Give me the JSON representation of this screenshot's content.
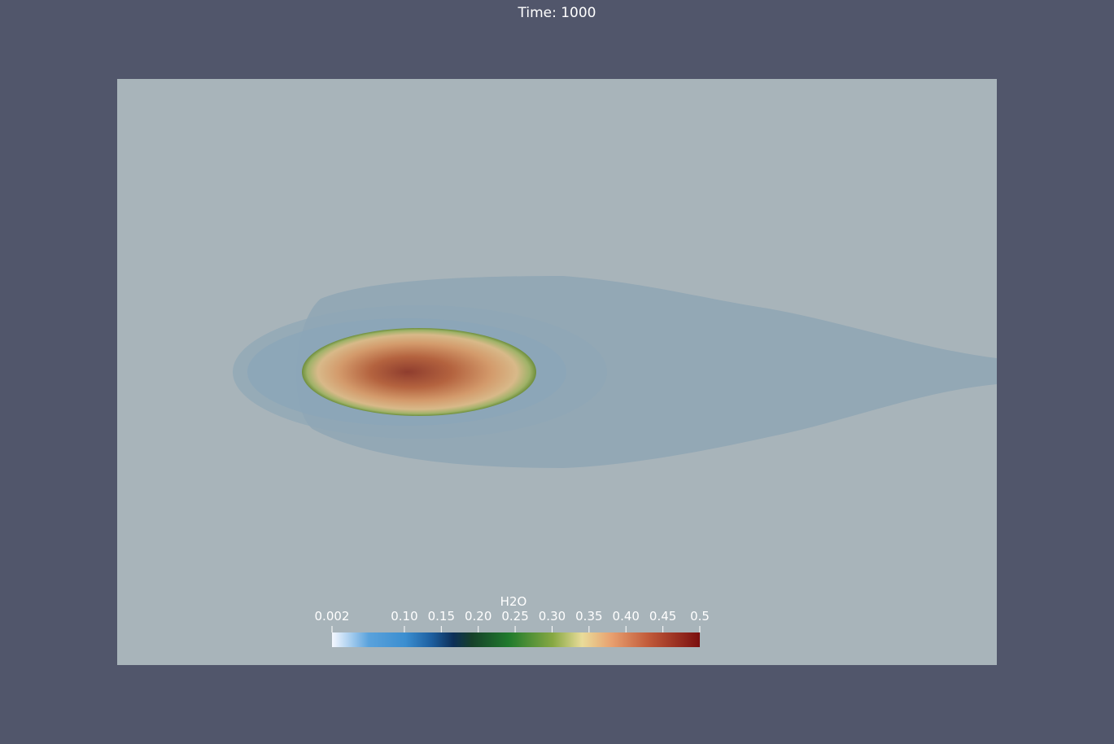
{
  "header": {
    "time_label": "Time: 1000"
  },
  "colorbar": {
    "title": "H2O",
    "range": [
      0.002,
      0.5
    ],
    "tick_labels": [
      "0.002",
      "0.10",
      "0.15",
      "0.20",
      "0.25",
      "0.30",
      "0.35",
      "0.40",
      "0.45",
      "0.5"
    ],
    "tick_values": [
      0.002,
      0.1,
      0.15,
      0.2,
      0.25,
      0.3,
      0.35,
      0.4,
      0.45,
      0.5
    ],
    "colormap": [
      "#f5f8ff",
      "#b7d6f2",
      "#3b8ed0",
      "#1d5fa0",
      "#0d2f58",
      "#16402a",
      "#1f7a2c",
      "#86a843",
      "#e9dc9a",
      "#e8a06f",
      "#c15a3a",
      "#7a0e0e"
    ]
  },
  "colors": {
    "background": "#51566b",
    "domain": "#a8b4ba",
    "plume": "#93a9b6"
  }
}
